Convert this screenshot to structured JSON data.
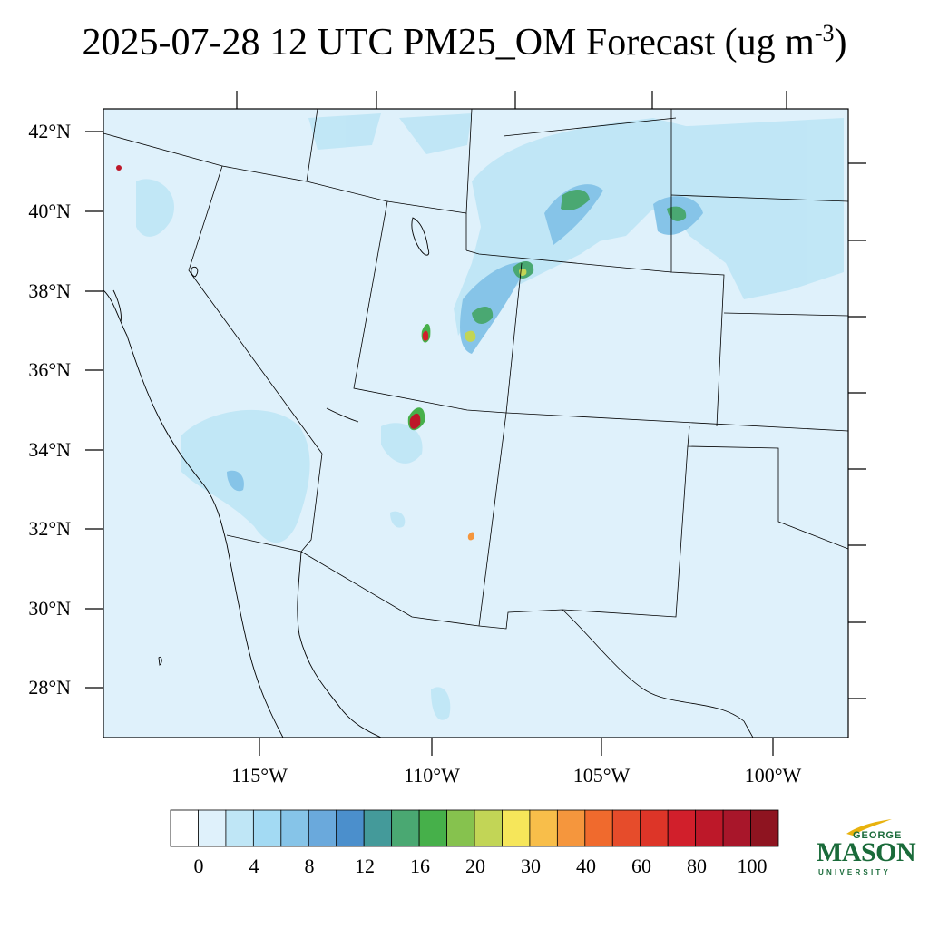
{
  "header": {
    "title_main": "2025-07-28 12 UTC PM25_OM Forecast (ug m",
    "title_sup": "-3",
    "title_end": ")"
  },
  "map": {
    "lat_labels": [
      "42°N",
      "40°N",
      "38°N",
      "36°N",
      "34°N",
      "32°N",
      "30°N",
      "28°N"
    ],
    "lon_labels": [
      "115°W",
      "110°W",
      "105°W",
      "100°W"
    ],
    "background_color": "#dff1fb"
  },
  "colorbar": {
    "colors": [
      "#ffffff",
      "#dff1fb",
      "#bfe6f6",
      "#a3daf3",
      "#86c4e8",
      "#6aa9dc",
      "#4b8fcc",
      "#449a9a",
      "#4aa872",
      "#46b04a",
      "#86c24e",
      "#c2d556",
      "#f6e65a",
      "#f8be4a",
      "#f5963d",
      "#f06a2d",
      "#e64c2b",
      "#dd3528",
      "#d11f2b",
      "#bd1829",
      "#a8162a",
      "#8e1420"
    ],
    "tick_labels": [
      "0",
      "4",
      "8",
      "12",
      "16",
      "20",
      "30",
      "40",
      "60",
      "80",
      "100"
    ]
  },
  "logo": {
    "line1": "GEORGE",
    "line2": "MASON",
    "line3": "UNIVERSITY"
  }
}
